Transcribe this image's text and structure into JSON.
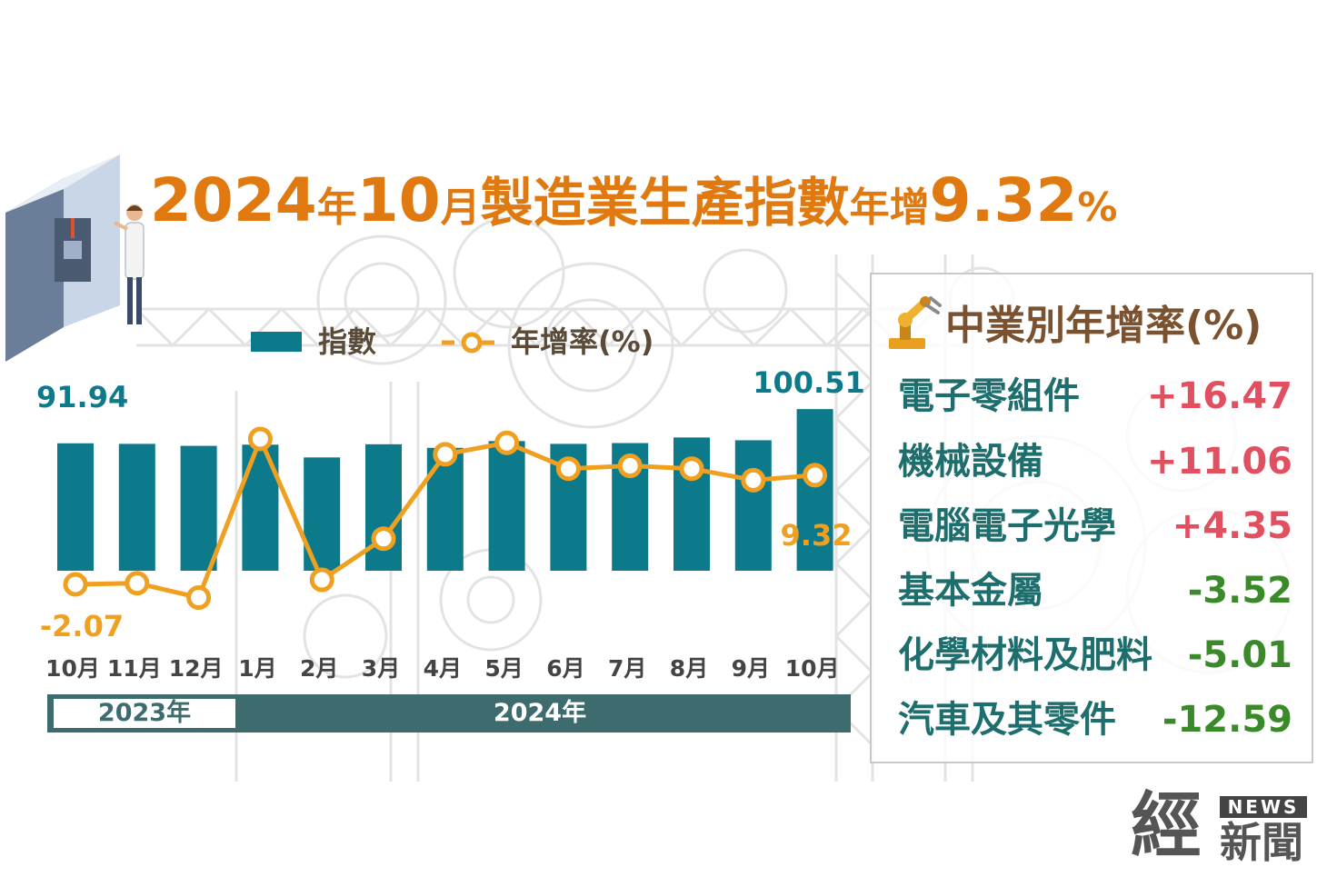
{
  "title": {
    "year": "2024",
    "year_suffix": "年",
    "month": "10",
    "month_suffix": "月",
    "main": "製造業生產指數",
    "growth_word": "年增",
    "growth_value": "9.32",
    "percent": "%"
  },
  "legend": {
    "bar_label": "指數",
    "line_label": "年增率(%)"
  },
  "colors": {
    "bar": "#0c7a8a",
    "line": "#f0a020",
    "title": "#e07a10",
    "positive": "#e05060",
    "negative": "#3a8a2a",
    "industry_name": "#1e6e6e",
    "year_strip": "#3d6b6e"
  },
  "chart_data": {
    "type": "bar",
    "categories": [
      "10月",
      "11月",
      "12月",
      "1月",
      "2月",
      "3月",
      "4月",
      "5月",
      "6月",
      "7月",
      "8月",
      "9月",
      "10月"
    ],
    "series": [
      {
        "name": "指數",
        "type": "bar",
        "values": [
          91.94,
          91.8,
          91.3,
          91.6,
          88.4,
          91.7,
          90.8,
          92.5,
          91.8,
          92.0,
          93.4,
          92.7,
          100.51
        ]
      },
      {
        "name": "年增率(%)",
        "type": "line",
        "values": [
          -2.07,
          -1.95,
          -3.45,
          13.1,
          -1.6,
          2.7,
          11.5,
          12.7,
          10.0,
          10.3,
          10.0,
          8.8,
          9.32
        ]
      }
    ],
    "data_labels": {
      "bar_first": "91.94",
      "bar_last": "100.51",
      "line_first": "-2.07",
      "line_last": "9.32"
    },
    "year_groups": [
      {
        "label": "2023年",
        "months": 3
      },
      {
        "label": "2024年",
        "months": 10
      }
    ]
  },
  "panel": {
    "title": "中業別年增率(%)",
    "items": [
      {
        "name": "電子零組件",
        "value": "+16.47",
        "sign": "positive"
      },
      {
        "name": "機械設備",
        "value": "+11.06",
        "sign": "positive"
      },
      {
        "name": "電腦電子光學",
        "value": "+4.35",
        "sign": "positive"
      },
      {
        "name": "基本金屬",
        "value": "-3.52",
        "sign": "negative"
      },
      {
        "name": "化學材料及肥料",
        "value": "-5.01",
        "sign": "negative"
      },
      {
        "name": "汽車及其零件",
        "value": "-12.59",
        "sign": "negative"
      }
    ]
  },
  "logo": {
    "char": "經",
    "news": "NEWS",
    "sub": "新聞"
  }
}
